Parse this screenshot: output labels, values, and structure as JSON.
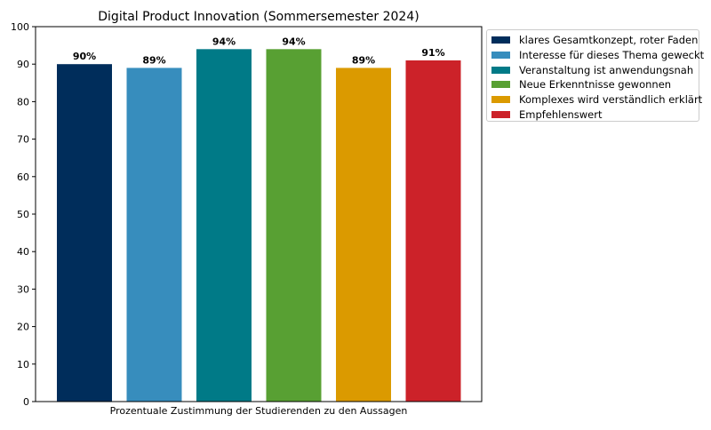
{
  "chart_data": {
    "type": "bar",
    "title": "Digital Product Innovation (Sommersemester 2024)",
    "xlabel": "Prozentuale Zustimmung der Studierenden zu den Aussagen",
    "ylabel": "",
    "ylim": [
      0,
      100
    ],
    "yticks": [
      0,
      10,
      20,
      30,
      40,
      50,
      60,
      70,
      80,
      90,
      100
    ],
    "grid": false,
    "legend_position": "outside-right-top",
    "series": [
      {
        "name": "klares Gesamtkonzept, roter Faden",
        "value": 90,
        "label": "90%",
        "color": "#002d5b"
      },
      {
        "name": "Interesse für dieses Thema geweckt",
        "value": 89,
        "label": "89%",
        "color": "#378dbd"
      },
      {
        "name": "Veranstaltung ist anwendungsnah",
        "value": 94,
        "label": "94%",
        "color": "#007a87"
      },
      {
        "name": "Neue Erkenntnisse gewonnen",
        "value": 94,
        "label": "94%",
        "color": "#58a033"
      },
      {
        "name": "Komplexes wird verständlich erklärt",
        "value": 89,
        "label": "89%",
        "color": "#db9a00"
      },
      {
        "name": "Empfehlenswert",
        "value": 91,
        "label": "91%",
        "color": "#cc2229"
      }
    ]
  }
}
